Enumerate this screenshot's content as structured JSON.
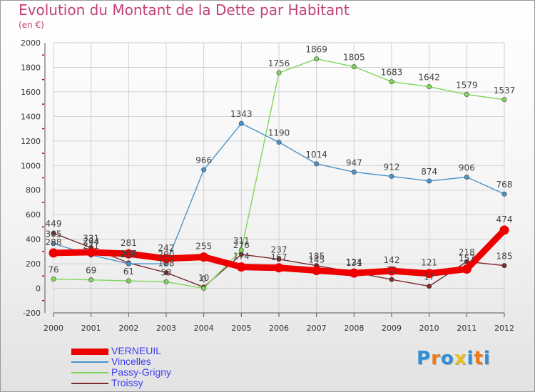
{
  "title": "Evolution du Montant de la Dette par Habitant",
  "subtitle": "(en €)",
  "colors": {
    "title": "#c0407a",
    "axis_label": "#3d3df0",
    "grid": "#d0d0d0",
    "tick_red": "#cc0000"
  },
  "chart_data": {
    "type": "line",
    "title": "Evolution du Montant de la Dette par Habitant",
    "subtitle": "(en €)",
    "xlabel": "",
    "ylabel": "",
    "categories": [
      "2000",
      "2001",
      "2002",
      "2003",
      "2004",
      "2005",
      "2006",
      "2007",
      "2008",
      "2009",
      "2010",
      "2011",
      "2012"
    ],
    "ylim": [
      -200,
      2000
    ],
    "ytick_values": [
      -200,
      0,
      200,
      400,
      600,
      800,
      1000,
      1200,
      1400,
      1600,
      1800,
      2000
    ],
    "ytick_labels": [
      "-200",
      "0",
      "200",
      "400",
      "600",
      "800",
      "1000",
      "1200",
      "1400",
      "1600",
      "1800",
      "2000"
    ],
    "grid": true,
    "legend_position": "bottom-left",
    "series": [
      {
        "name": "Troissy",
        "color": "#7a2a2a",
        "values": [
          449,
          331,
          207,
          128,
          10,
          276,
          237,
          185,
          131,
          72,
          17,
          218,
          185
        ],
        "labels": [
          "449",
          "331",
          "207",
          "128",
          "10",
          "276",
          "237",
          "185",
          "131",
          "72",
          "17",
          "218",
          "185"
        ]
      },
      {
        "name": "Passy-Grigny",
        "color": "#7fd65a",
        "values": [
          76,
          69,
          61,
          53,
          0,
          311,
          1756,
          1869,
          1805,
          1683,
          1642,
          1579,
          1537
        ],
        "labels": [
          "76",
          "69",
          "61",
          "53",
          "0",
          "311",
          "1756",
          "1869",
          "1805",
          "1683",
          "1642",
          "1579",
          "1537"
        ]
      },
      {
        "name": "Vincelles",
        "color": "#4a94cc",
        "values": [
          365,
          271,
          200,
          200,
          966,
          1343,
          1190,
          1014,
          947,
          912,
          874,
          906,
          768
        ],
        "labels": [
          "365",
          "271",
          "200",
          "200",
          "966",
          "1343",
          "1190",
          "1014",
          "947",
          "912",
          "874",
          "906",
          "768"
        ]
      },
      {
        "name": "VERNEUIL",
        "color": "#ee0000",
        "values": [
          288,
          294,
          281,
          242,
          255,
          174,
          167,
          145,
          124,
          142,
          121,
          157,
          474
        ],
        "labels": [
          "288",
          "294",
          "281",
          "242",
          "255",
          "174",
          "167",
          "145",
          "124",
          "142",
          "121",
          "157",
          "474"
        ]
      }
    ]
  },
  "legend": {
    "items": [
      {
        "name": "VERNEUIL",
        "color": "#ee0000"
      },
      {
        "name": "Vincelles",
        "color": "#4a94cc"
      },
      {
        "name": "Passy-Grigny",
        "color": "#7fd65a"
      },
      {
        "name": "Troissy",
        "color": "#7a2a2a"
      }
    ]
  },
  "logo": {
    "text": "Proxiti",
    "letter_colors": [
      "#2f8fd8",
      "#f07a1a",
      "#2f8fd8",
      "#e8c020",
      "#2f8fd8",
      "#f07a1a",
      "#2f8fd8"
    ]
  }
}
